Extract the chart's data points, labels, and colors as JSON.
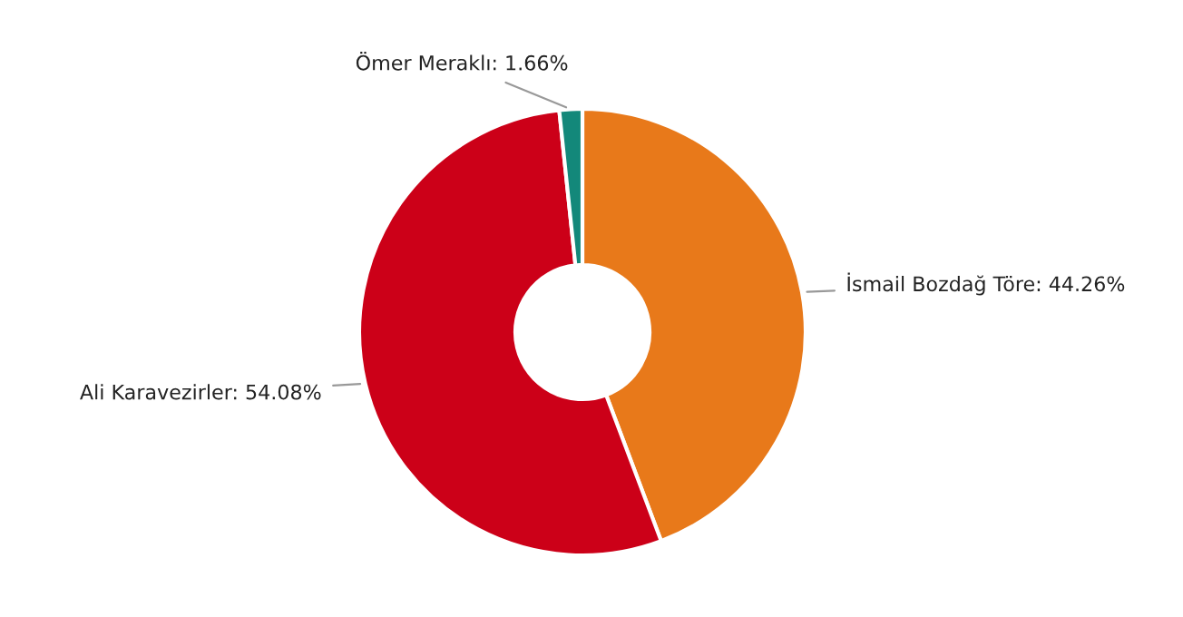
{
  "chart_data": {
    "type": "donut",
    "categories": [
      "İsmail Bozdağ Töre",
      "Ali Karavezirler",
      "Ömer Meraklı"
    ],
    "values": [
      44.26,
      54.08,
      1.66
    ],
    "value_labels": [
      "44.26%",
      "54.08%",
      "1.66%"
    ],
    "colors": [
      "#e8791a",
      "#cc0018",
      "#13887a"
    ]
  }
}
